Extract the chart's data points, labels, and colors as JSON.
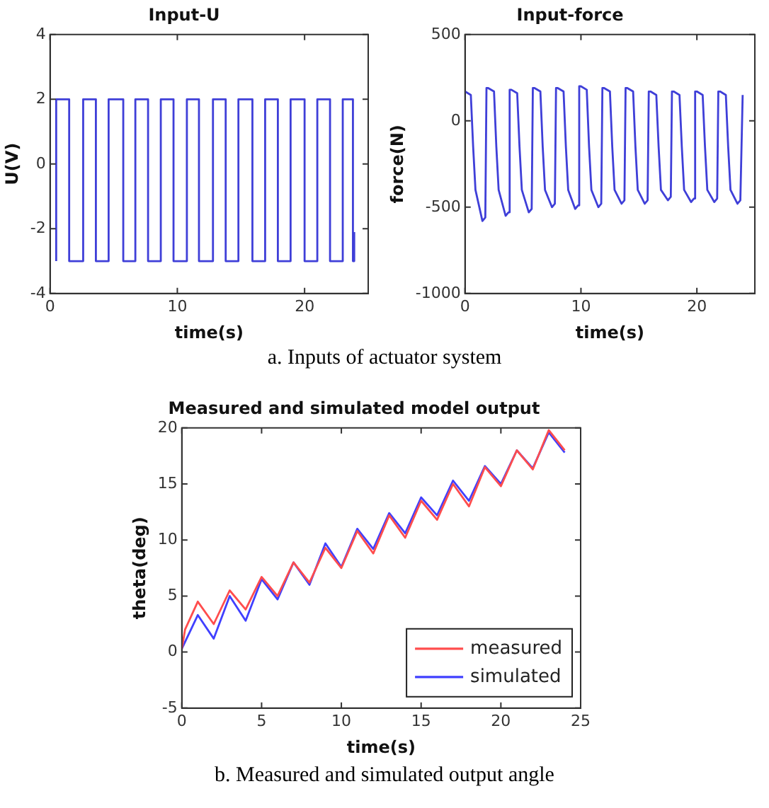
{
  "chart_data": [
    {
      "type": "line",
      "title": "Input-U",
      "xlabel": "time(s)",
      "ylabel": "U(V)",
      "color": "#3f3fd8",
      "annotations": [
        "a. Inputs of actuator system"
      ],
      "xlim": [
        0,
        25
      ],
      "xticks": [
        0,
        10,
        20
      ],
      "ylim": [
        -4,
        4
      ],
      "yticks": [
        -4,
        -2,
        0,
        2,
        4
      ],
      "grid": false,
      "x": [
        0.48,
        0.48,
        1.5,
        1.5,
        2.6,
        2.6,
        3.6,
        3.6,
        4.6,
        4.6,
        5.75,
        5.75,
        6.7,
        6.7,
        7.7,
        7.7,
        8.7,
        8.7,
        9.7,
        9.7,
        10.75,
        10.75,
        11.7,
        11.7,
        12.8,
        12.8,
        13.8,
        13.8,
        14.8,
        14.8,
        15.9,
        15.9,
        16.9,
        16.9,
        17.9,
        17.9,
        18.9,
        18.9,
        20.0,
        20.0,
        21.0,
        21.0,
        22.0,
        22.0,
        23.0,
        23.0,
        23.8,
        23.8,
        23.9,
        23.9
      ],
      "values": [
        -3,
        2,
        2,
        -3,
        -3,
        2,
        2,
        -3,
        -3,
        2,
        2,
        -3,
        -3,
        2,
        2,
        -3,
        -3,
        2,
        2,
        -3,
        -3,
        2,
        2,
        -3,
        -3,
        2,
        2,
        -3,
        -3,
        2,
        2,
        -3,
        -3,
        2,
        2,
        -3,
        -3,
        2,
        2,
        -3,
        -3,
        2,
        2,
        -3,
        -3,
        2,
        2,
        -3,
        -3,
        -2.1
      ]
    },
    {
      "type": "line",
      "title": "Input-force",
      "xlabel": "time(s)",
      "ylabel": "force(N)",
      "color": "#3f3fd8",
      "xlim": [
        0,
        25
      ],
      "xticks": [
        0,
        10,
        20
      ],
      "ylim": [
        -1000,
        500
      ],
      "yticks": [
        -1000,
        -500,
        0,
        500
      ],
      "grid": false,
      "x": [
        0,
        0.5,
        0.7,
        0.9,
        1.5,
        1.75,
        1.85,
        2,
        2.5,
        2.7,
        2.9,
        3.5,
        3.75,
        3.85,
        4,
        4.5,
        4.7,
        4.9,
        5.5,
        5.75,
        5.85,
        6,
        6.5,
        6.7,
        6.9,
        7.5,
        7.75,
        7.85,
        8,
        8.5,
        8.7,
        8.9,
        9.5,
        9.75,
        9.85,
        10,
        10.5,
        10.7,
        10.9,
        11.5,
        11.75,
        11.85,
        12,
        12.5,
        12.7,
        12.9,
        13.5,
        13.75,
        13.85,
        14,
        14.5,
        14.7,
        14.9,
        15.5,
        15.75,
        15.85,
        16,
        16.5,
        16.7,
        16.9,
        17.5,
        17.75,
        17.85,
        18,
        18.5,
        18.7,
        18.9,
        19.5,
        19.75,
        19.85,
        20,
        20.5,
        20.7,
        20.9,
        21.5,
        21.75,
        21.85,
        22,
        22.5,
        22.7,
        22.9,
        23.5,
        23.75,
        23.95
      ],
      "values": [
        170,
        150,
        -150,
        -400,
        -580,
        -560,
        190,
        190,
        170,
        -150,
        -400,
        -550,
        -530,
        180,
        180,
        160,
        -150,
        -400,
        -530,
        -510,
        190,
        190,
        170,
        -150,
        -400,
        -500,
        -480,
        190,
        190,
        170,
        -150,
        -400,
        -510,
        -490,
        200,
        200,
        180,
        -150,
        -400,
        -500,
        -480,
        190,
        190,
        170,
        -150,
        -400,
        -480,
        -460,
        190,
        190,
        170,
        -150,
        -400,
        -480,
        -460,
        170,
        170,
        150,
        -150,
        -400,
        -460,
        -440,
        170,
        170,
        150,
        -150,
        -400,
        -470,
        -450,
        170,
        170,
        150,
        -150,
        -400,
        -470,
        -450,
        170,
        170,
        150,
        -150,
        -400,
        -480,
        -460,
        150
      ]
    },
    {
      "type": "line",
      "title": "Measured and simulated model output",
      "xlabel": "time(s)",
      "ylabel": "theta(deg)",
      "annotations": [
        "b. Measured and simulated output angle"
      ],
      "xlim": [
        0,
        25
      ],
      "xticks": [
        0,
        5,
        10,
        15,
        20,
        25
      ],
      "ylim": [
        -5,
        20
      ],
      "yticks": [
        -5,
        0,
        5,
        10,
        15,
        20
      ],
      "grid": false,
      "legend": "bottom right",
      "series": [
        {
          "name": "measured",
          "color": "#ff4d4d",
          "x": [
            0,
            0.2,
            1,
            2,
            3,
            4,
            5,
            6,
            7,
            8,
            9,
            10,
            11,
            12,
            13,
            14,
            15,
            16,
            17,
            18,
            19,
            20,
            21,
            22,
            23,
            24
          ],
          "values": [
            0.3,
            2.0,
            4.5,
            2.5,
            5.5,
            3.8,
            6.7,
            5.0,
            8.0,
            6.2,
            9.3,
            7.5,
            10.8,
            8.8,
            12.2,
            10.2,
            13.5,
            11.8,
            15.0,
            13.0,
            16.5,
            14.8,
            18.0,
            16.3,
            19.8,
            18.0
          ]
        },
        {
          "name": "simulated",
          "color": "#4040ff",
          "x": [
            0,
            1,
            2,
            3,
            4,
            5,
            6,
            7,
            8,
            9,
            10,
            11,
            12,
            13,
            14,
            15,
            16,
            17,
            18,
            19,
            20,
            21,
            22,
            23,
            24
          ],
          "values": [
            0.3,
            3.3,
            1.2,
            5.0,
            2.8,
            6.5,
            4.7,
            8.0,
            6.0,
            9.7,
            7.6,
            11.0,
            9.2,
            12.4,
            10.6,
            13.8,
            12.2,
            15.3,
            13.5,
            16.6,
            15.0,
            18.0,
            16.4,
            19.6,
            17.8
          ]
        }
      ]
    }
  ]
}
